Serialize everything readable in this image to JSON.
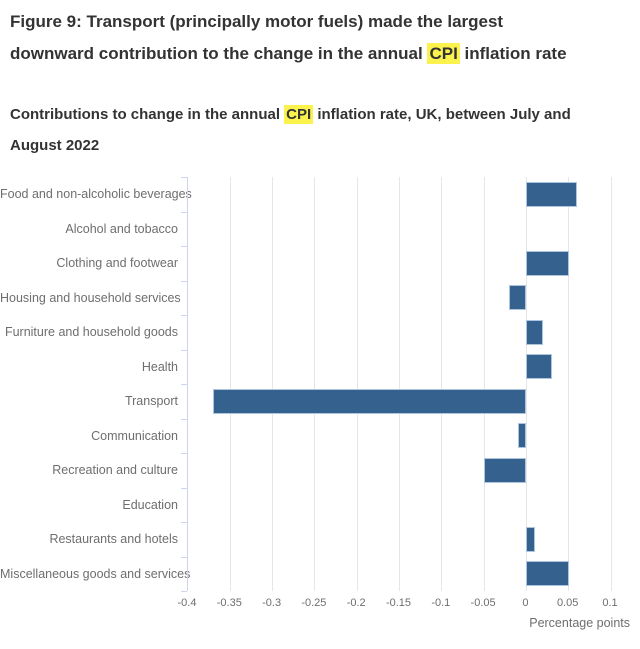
{
  "title": {
    "pre": "Figure 9: Transport (principally motor fuels) made the largest downward contribution to the change in the annual ",
    "mark": "CPI",
    "post": " inflation rate"
  },
  "subtitle": {
    "pre": "Contributions to change in the annual ",
    "mark": "CPI",
    "post": " inflation rate, UK, between July and August 2022"
  },
  "colors": {
    "bar_fill": "#35618f",
    "bar_border": "#aec5e0",
    "gridline": "#e6e6e6",
    "axis_line": "#ccd6eb",
    "title_text": "#333333",
    "muted_text": "#6e6e6e",
    "highlight": "#fbf24e"
  },
  "chart_data": {
    "type": "bar",
    "orientation": "horizontal",
    "title": "Figure 9: Transport (principally motor fuels) made the largest downward contribution to the change in the annual CPI inflation rate",
    "subtitle": "Contributions to change in the annual CPI inflation rate, UK, between July and August 2022",
    "categories": [
      "Food and non-alcoholic beverages",
      "Alcohol and tobacco",
      "Clothing and footwear",
      "Housing and household services",
      "Furniture and household goods",
      "Health",
      "Transport",
      "Communication",
      "Recreation and culture",
      "Education",
      "Restaurants and hotels",
      "Miscellaneous goods and services"
    ],
    "values": [
      0.06,
      0,
      0.05,
      -0.02,
      0.02,
      0.03,
      -0.37,
      -0.01,
      -0.05,
      0,
      0.01,
      0.05
    ],
    "xlabel": "Percentage points",
    "ylabel": "",
    "xlim": [
      -0.4,
      0.1
    ],
    "x_ticks": [
      -0.4,
      -0.35,
      -0.3,
      -0.25,
      -0.2,
      -0.15,
      -0.1,
      -0.05,
      0,
      0.05,
      0.1
    ],
    "x_tick_labels": [
      "-0.4",
      "-0.35",
      "-0.3",
      "-0.25",
      "-0.2",
      "-0.15",
      "-0.1",
      "-0.05",
      "0",
      "0.05",
      "0.1"
    ],
    "grid": true,
    "legend": false
  }
}
